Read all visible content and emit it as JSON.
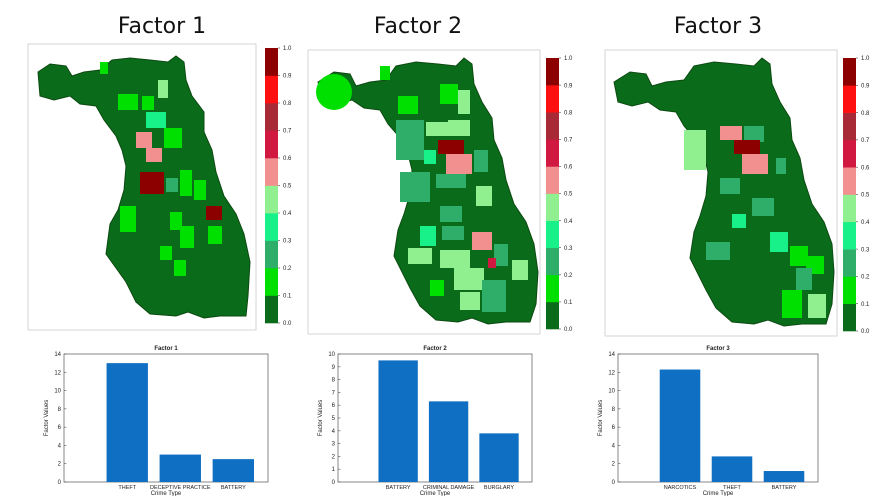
{
  "colors": {
    "bar": "#0f6fc2",
    "map_base": "#0a6b1a",
    "colorbar": [
      "#0a6b1a",
      "#00e000",
      "#2fae6a",
      "#18f08a",
      "#90f090",
      "#f29090",
      "#d01840",
      "#a82a36",
      "#ff1010",
      "#8c0000"
    ]
  },
  "colorbar_ticks": [
    "0.0",
    "0.1",
    "0.2",
    "0.3",
    "0.4",
    "0.5",
    "0.6",
    "0.7",
    "0.8",
    "0.9",
    "1.0"
  ],
  "panels": [
    {
      "heading": "Factor 1",
      "chart_data": {
        "type": "bar",
        "title": "Factor 1",
        "xlabel": "Crime Type",
        "ylabel": "Factor Values",
        "categories": [
          "THEFT",
          "DECEPTIVE PRACTICE",
          "BATTERY"
        ],
        "values": [
          13.0,
          3.0,
          2.5
        ],
        "ylim": [
          0,
          14
        ],
        "yticks": [
          "0",
          "2",
          "4",
          "6",
          "8",
          "10",
          "12",
          "14"
        ]
      }
    },
    {
      "heading": "Factor 2",
      "chart_data": {
        "type": "bar",
        "title": "Factor 2",
        "xlabel": "Crime Type",
        "ylabel": "Factor Values",
        "categories": [
          "BATTERY",
          "CRIMINAL DAMAGE",
          "BURGLARY"
        ],
        "values": [
          9.5,
          6.3,
          3.8
        ],
        "ylim": [
          0,
          10
        ],
        "yticks": [
          "0",
          "1",
          "2",
          "3",
          "4",
          "5",
          "6",
          "7",
          "8",
          "9",
          "10"
        ]
      }
    },
    {
      "heading": "Factor 3",
      "chart_data": {
        "type": "bar",
        "title": "Factor 3",
        "xlabel": "Crime Type",
        "ylabel": "Factor Values",
        "categories": [
          "NARCOTICS",
          "THEFT",
          "BATTERY"
        ],
        "values": [
          12.3,
          2.8,
          1.2
        ],
        "ylim": [
          0,
          14
        ],
        "yticks": [
          "0",
          "2",
          "4",
          "6",
          "8",
          "10",
          "12",
          "14"
        ]
      }
    }
  ]
}
